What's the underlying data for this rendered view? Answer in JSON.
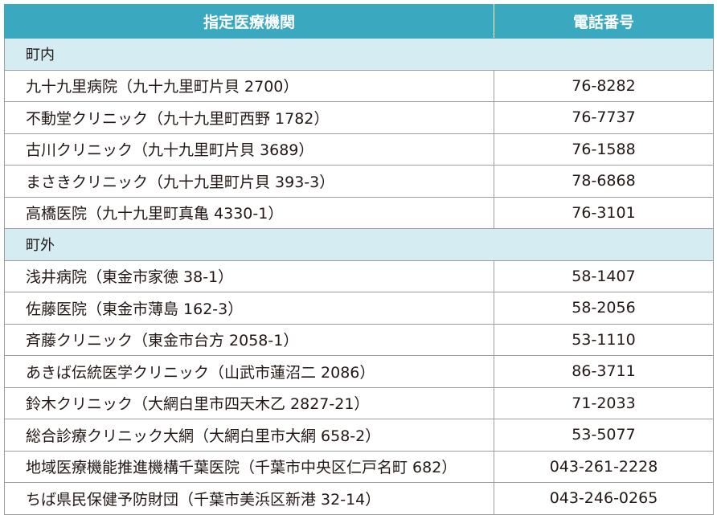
{
  "header": {
    "name_label": "指定医療機関",
    "phone_label": "電話番号"
  },
  "sections": [
    {
      "label": "町内",
      "rows": [
        {
          "name": "九十九里病院（九十九里町片貝 2700）",
          "phone": "76-8282"
        },
        {
          "name": "不動堂クリニック（九十九里町西野 1782）",
          "phone": "76-7737"
        },
        {
          "name": "古川クリニック（九十九里町片貝 3689）",
          "phone": "76-1588"
        },
        {
          "name": "まさきクリニック（九十九里町片貝 393-3）",
          "phone": "78-6868"
        },
        {
          "name": "高橋医院（九十九里町真亀 4330-1）",
          "phone": "76-3101"
        }
      ]
    },
    {
      "label": "町外",
      "rows": [
        {
          "name": "浅井病院（東金市家徳 38-1）",
          "phone": "58-1407"
        },
        {
          "name": "佐藤医院（東金市薄島 162-3）",
          "phone": "58-2056"
        },
        {
          "name": "斉藤クリニック（東金市台方 2058-1）",
          "phone": "53-1110"
        },
        {
          "name": "あきば伝統医学クリニック（山武市蓮沼二 2086）",
          "phone": "86-3711"
        },
        {
          "name": "鈴木クリニック（大網白里市四天木乙 2827-21）",
          "phone": "71-2033"
        },
        {
          "name": "総合診療クリニック大網（大網白里市大網 658-2）",
          "phone": "53-5077"
        },
        {
          "name": "地域医療機能推進機構千葉医院（千葉市中央区仁戸名町 682）",
          "phone": "043-261-2228"
        },
        {
          "name": "ちば県民保健予防財団（千葉市美浜区新港 32-14）",
          "phone": "043-246-0265"
        }
      ]
    }
  ]
}
